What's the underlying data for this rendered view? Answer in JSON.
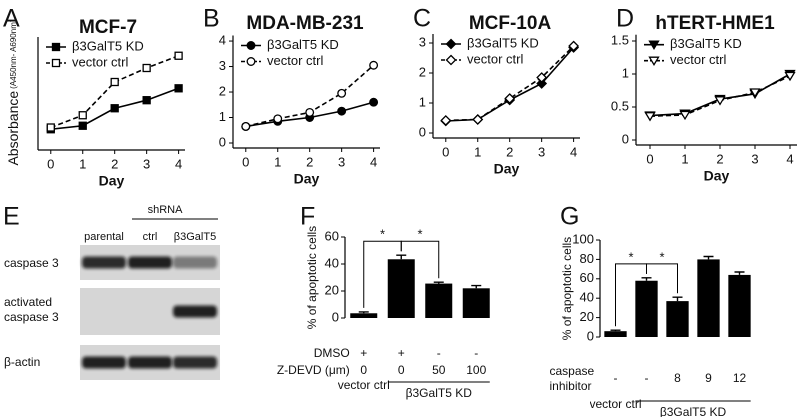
{
  "chart_data": [
    {
      "type": "line",
      "panel": "A",
      "title": "MCF-7",
      "ylabel": "Absorbance",
      "ylabel_sub": "(A450nm- A690nm)",
      "xlabel": "Day",
      "x": [
        0,
        1,
        2,
        3,
        4
      ],
      "xlim": [
        -0.4,
        4.2
      ],
      "xticks": [
        0,
        1,
        2,
        3,
        4
      ],
      "ylim": [
        0,
        3
      ],
      "series": [
        {
          "name": "β3GalT5 KD",
          "color": "#000000",
          "marker": "square",
          "filled": true,
          "dashed": false,
          "values": [
            0.45,
            0.55,
            1.05,
            1.28,
            1.62
          ]
        },
        {
          "name": "vector ctrl",
          "color": "#000000",
          "marker": "square",
          "filled": false,
          "dashed": true,
          "values": [
            0.5,
            0.85,
            1.8,
            2.2,
            2.55
          ]
        }
      ]
    },
    {
      "type": "line",
      "panel": "B",
      "title": "MDA-MB-231",
      "xlabel": "Day",
      "x": [
        0,
        1,
        2,
        3,
        4
      ],
      "xlim": [
        -0.4,
        4.2
      ],
      "xticks": [
        0,
        1,
        2,
        3,
        4
      ],
      "ylim": [
        0,
        4.1
      ],
      "yticks": [
        0,
        1,
        2,
        3,
        4
      ],
      "series": [
        {
          "name": "β3GalT5 KD",
          "color": "#000000",
          "marker": "circle",
          "filled": true,
          "dashed": false,
          "values": [
            0.65,
            0.85,
            1.0,
            1.25,
            1.6
          ]
        },
        {
          "name": "vector ctrl",
          "color": "#000000",
          "marker": "circle",
          "filled": false,
          "dashed": true,
          "values": [
            0.65,
            0.95,
            1.2,
            1.95,
            3.05
          ]
        }
      ]
    },
    {
      "type": "line",
      "panel": "C",
      "title": "MCF-10A",
      "xlabel": "Day",
      "x": [
        0,
        1,
        2,
        3,
        4
      ],
      "xlim": [
        -0.4,
        4.2
      ],
      "xticks": [
        0,
        1,
        2,
        3,
        4
      ],
      "ylim": [
        0,
        3.2
      ],
      "yticks": [
        0,
        1,
        2,
        3
      ],
      "series": [
        {
          "name": "β3GalT5 KD",
          "color": "#000000",
          "marker": "diamond",
          "filled": true,
          "dashed": false,
          "values": [
            0.4,
            0.45,
            1.1,
            1.65,
            2.85
          ]
        },
        {
          "name": "vector ctrl",
          "color": "#000000",
          "marker": "diamond",
          "filled": false,
          "dashed": true,
          "values": [
            0.42,
            0.45,
            1.15,
            1.85,
            2.9
          ]
        }
      ]
    },
    {
      "type": "line",
      "panel": "D",
      "title": "hTERT-HME1",
      "xlabel": "Day",
      "x": [
        0,
        1,
        2,
        3,
        4
      ],
      "xlim": [
        -0.4,
        4.2
      ],
      "xticks": [
        0,
        1,
        2,
        3,
        4
      ],
      "ylim": [
        0,
        1.55
      ],
      "yticks": [
        0,
        0.5,
        1,
        1.5
      ],
      "series": [
        {
          "name": "β3GalT5 KD",
          "color": "#000000",
          "marker": "triangle",
          "filled": true,
          "dashed": false,
          "values": [
            0.37,
            0.4,
            0.62,
            0.7,
            1.0
          ]
        },
        {
          "name": "vector ctrl",
          "color": "#000000",
          "marker": "triangle",
          "filled": false,
          "dashed": true,
          "values": [
            0.36,
            0.38,
            0.6,
            0.72,
            0.97
          ]
        }
      ]
    },
    {
      "type": "blot",
      "panel": "E",
      "header": "shRNA",
      "lanes": [
        "parental",
        "ctrl",
        "β3GalT5"
      ],
      "rows": [
        "caspase 3",
        "activated caspase 3",
        "β-actin"
      ]
    },
    {
      "type": "bar",
      "panel": "F",
      "ylabel": "% of apoptotic cells",
      "color": "#000000",
      "ylim": [
        0,
        60
      ],
      "yticks": [
        0,
        20,
        40,
        60
      ],
      "values": [
        3.5,
        43.5,
        25.5,
        22
      ],
      "errors": [
        1,
        3,
        1,
        2
      ],
      "annotations": [
        "*",
        "*"
      ],
      "conditions": [
        {
          "label": "DMSO",
          "values": [
            "+",
            "+",
            "-",
            "-"
          ]
        },
        {
          "label": "Z-DEVD (μm)",
          "values": [
            "0",
            "0",
            "50",
            "100"
          ]
        }
      ],
      "groups": [
        "vector ctrl",
        "β3GalT5 KD"
      ]
    },
    {
      "type": "bar",
      "panel": "G",
      "ylabel": "% of apoptotic cells",
      "color": "#000000",
      "ylim": [
        0,
        100
      ],
      "yticks": [
        0,
        20,
        40,
        60,
        80,
        100
      ],
      "values": [
        6,
        58,
        37,
        80,
        64
      ],
      "errors": [
        1,
        3,
        4,
        3,
        3
      ],
      "annotations": [
        "*",
        "*"
      ],
      "conditions": [
        {
          "label": "caspase inhibitor",
          "values": [
            "-",
            "-",
            "8",
            "9",
            "12"
          ]
        }
      ],
      "groups": [
        "vector ctrl",
        "β3GalT5 KD"
      ]
    }
  ]
}
